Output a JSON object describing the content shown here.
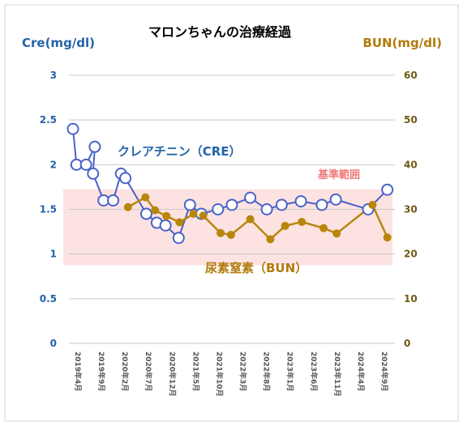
{
  "chart_data": {
    "type": "line",
    "title": "マロンちゃんの治療経過",
    "y_left": {
      "label": "Cre(mg/dl)",
      "range": [
        0,
        3
      ],
      "ticks": [
        "0",
        "0.5",
        "1",
        "1.5",
        "2",
        "2.5",
        "3"
      ],
      "tick_values": [
        0,
        0.5,
        1,
        1.5,
        2,
        2.5,
        3
      ]
    },
    "y_right": {
      "label": "BUN(mg/dl)",
      "range": [
        0,
        60
      ],
      "ticks": [
        "0",
        "10",
        "20",
        "30",
        "40",
        "50",
        "60"
      ],
      "tick_values": [
        0,
        10,
        20,
        30,
        40,
        50,
        60
      ]
    },
    "x_range": [
      0,
      33
    ],
    "x_ticks": [
      {
        "x": 0,
        "label": "2019年4月"
      },
      {
        "x": 2.7,
        "label": "2019年9月"
      },
      {
        "x": 5.4,
        "label": "2020年2月"
      },
      {
        "x": 8.1,
        "label": "2020年7月"
      },
      {
        "x": 10.8,
        "label": "2020年12月"
      },
      {
        "x": 13.5,
        "label": "2021年5月"
      },
      {
        "x": 16.2,
        "label": "2021年10月"
      },
      {
        "x": 18.9,
        "label": "2022年3月"
      },
      {
        "x": 21.6,
        "label": "2022年8月"
      },
      {
        "x": 24.3,
        "label": "2023年1月"
      },
      {
        "x": 27.0,
        "label": "2023年6月"
      },
      {
        "x": 29.7,
        "label": "2023年11月"
      },
      {
        "x": 32.4,
        "label": "2024年4月"
      },
      {
        "x": 35.1,
        "label": "2024年9月"
      }
    ],
    "reference_band": {
      "label": "基準範囲",
      "axis": "right",
      "range": [
        17.5,
        34.5
      ]
    },
    "series": [
      {
        "name": "クレアチニン（CRE）",
        "axis": "left",
        "color": "#4a63c8",
        "marker": "open-circle",
        "points": [
          [
            0,
            2.4
          ],
          [
            0.4,
            2.0
          ],
          [
            1.5,
            2.0
          ],
          [
            2.5,
            2.2
          ],
          [
            2.3,
            1.9
          ],
          [
            3.5,
            1.6
          ],
          [
            4.6,
            1.6
          ],
          [
            5.5,
            1.9
          ],
          [
            6.0,
            1.85
          ],
          [
            8.4,
            1.45
          ],
          [
            9.6,
            1.35
          ],
          [
            10.6,
            1.32
          ],
          [
            12.1,
            1.18
          ],
          [
            13.4,
            1.55
          ],
          [
            14.7,
            1.45
          ],
          [
            16.6,
            1.5
          ],
          [
            18.2,
            1.55
          ],
          [
            20.3,
            1.63
          ],
          [
            22.2,
            1.5
          ],
          [
            23.9,
            1.55
          ],
          [
            26.1,
            1.59
          ],
          [
            28.5,
            1.55
          ],
          [
            30.1,
            1.61
          ],
          [
            33.8,
            1.5
          ],
          [
            36.0,
            1.72
          ]
        ]
      },
      {
        "name": "尿素窒素（BUN）",
        "axis": "right",
        "color": "#b8860b",
        "marker": "filled-circle",
        "points": [
          [
            6.3,
            30.5
          ],
          [
            8.3,
            32.7
          ],
          [
            9.4,
            29.8
          ],
          [
            10.7,
            28.5
          ],
          [
            12.2,
            27.1
          ],
          [
            13.8,
            29.0
          ],
          [
            14.9,
            28.6
          ],
          [
            16.9,
            24.7
          ],
          [
            18.1,
            24.3
          ],
          [
            20.3,
            27.8
          ],
          [
            22.6,
            23.3
          ],
          [
            24.3,
            26.3
          ],
          [
            26.2,
            27.2
          ],
          [
            28.7,
            25.8
          ],
          [
            30.2,
            24.6
          ],
          [
            34.3,
            31.0
          ],
          [
            36.0,
            23.7
          ]
        ]
      }
    ]
  }
}
